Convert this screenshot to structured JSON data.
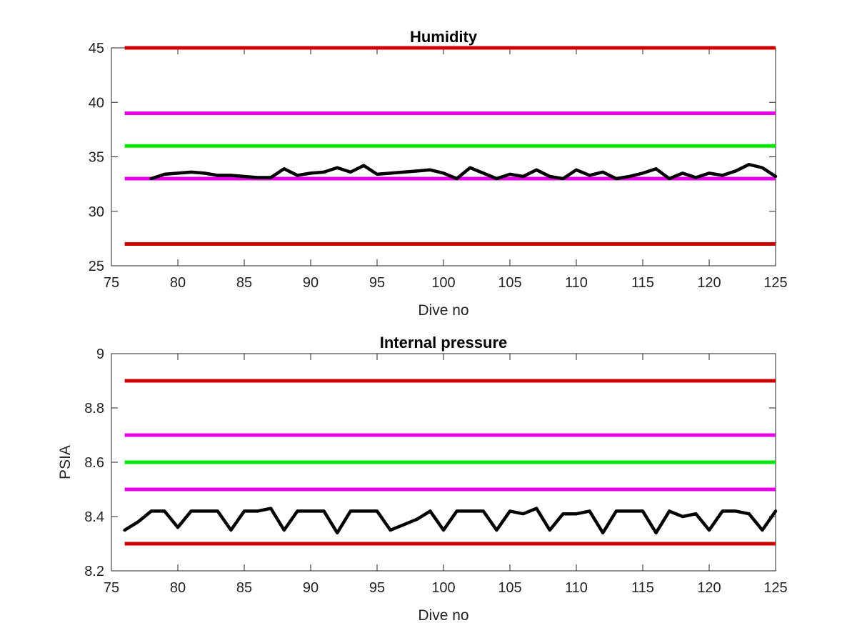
{
  "chart_data": [
    {
      "type": "line",
      "title": "Humidity",
      "xlabel": "Dive no",
      "ylabel": "",
      "xlim": [
        75,
        125
      ],
      "ylim": [
        25,
        45
      ],
      "xticks": [
        75,
        80,
        85,
        90,
        95,
        100,
        105,
        110,
        115,
        120,
        125
      ],
      "yticks": [
        25,
        30,
        35,
        40,
        45
      ],
      "grid": false,
      "limit_lines": [
        {
          "y": 45,
          "x": [
            76,
            125
          ],
          "color": "#cc0000"
        },
        {
          "y": 39,
          "x": [
            76,
            125
          ],
          "color": "#e600e6"
        },
        {
          "y": 36,
          "x": [
            76,
            125
          ],
          "color": "#00e600"
        },
        {
          "y": 33,
          "x": [
            76,
            125
          ],
          "color": "#e600e6"
        },
        {
          "y": 27,
          "x": [
            76,
            125
          ],
          "color": "#cc0000"
        }
      ],
      "series": [
        {
          "color": "#000000",
          "x": [
            78,
            79,
            80,
            81,
            82,
            83,
            84,
            85,
            86,
            87,
            88,
            89,
            90,
            91,
            92,
            93,
            94,
            95,
            96,
            97,
            98,
            99,
            100,
            101,
            102,
            103,
            104,
            105,
            106,
            107,
            108,
            109,
            110,
            111,
            112,
            113,
            114,
            115,
            116,
            117,
            118,
            119,
            120,
            121,
            122,
            123,
            124,
            125
          ],
          "y": [
            33.0,
            33.4,
            33.5,
            33.6,
            33.5,
            33.3,
            33.3,
            33.2,
            33.1,
            33.1,
            33.9,
            33.3,
            33.5,
            33.6,
            34.0,
            33.6,
            34.2,
            33.4,
            33.5,
            33.6,
            33.7,
            33.8,
            33.5,
            33.0,
            34.0,
            33.5,
            33.0,
            33.4,
            33.2,
            33.8,
            33.2,
            33.0,
            33.8,
            33.3,
            33.6,
            33.0,
            33.2,
            33.5,
            33.9,
            33.0,
            33.5,
            33.1,
            33.5,
            33.3,
            33.7,
            34.3,
            34.0,
            33.2
          ]
        }
      ]
    },
    {
      "type": "line",
      "title": "Internal pressure",
      "xlabel": "Dive no",
      "ylabel": "PSIA",
      "xlim": [
        75,
        125
      ],
      "ylim": [
        8.2,
        9.0
      ],
      "xticks": [
        75,
        80,
        85,
        90,
        95,
        100,
        105,
        110,
        115,
        120,
        125
      ],
      "yticks": [
        8.2,
        8.4,
        8.6,
        8.8,
        9
      ],
      "ytick_labels": [
        "8.2",
        "8.4",
        "8.6",
        "8.8",
        "9"
      ],
      "grid": false,
      "limit_lines": [
        {
          "y": 8.9,
          "x": [
            76,
            125
          ],
          "color": "#cc0000"
        },
        {
          "y": 8.7,
          "x": [
            76,
            125
          ],
          "color": "#e600e6"
        },
        {
          "y": 8.6,
          "x": [
            76,
            125
          ],
          "color": "#00e600"
        },
        {
          "y": 8.5,
          "x": [
            76,
            125
          ],
          "color": "#e600e6"
        },
        {
          "y": 8.3,
          "x": [
            76,
            125
          ],
          "color": "#cc0000"
        }
      ],
      "series": [
        {
          "color": "#000000",
          "x": [
            76,
            77,
            78,
            79,
            80,
            81,
            82,
            83,
            84,
            85,
            86,
            87,
            88,
            89,
            90,
            91,
            92,
            93,
            94,
            95,
            96,
            97,
            98,
            99,
            100,
            101,
            102,
            103,
            104,
            105,
            106,
            107,
            108,
            109,
            110,
            111,
            112,
            113,
            114,
            115,
            116,
            117,
            118,
            119,
            120,
            121,
            122,
            123,
            124,
            125
          ],
          "y": [
            8.35,
            8.38,
            8.42,
            8.42,
            8.36,
            8.42,
            8.42,
            8.42,
            8.35,
            8.42,
            8.42,
            8.43,
            8.35,
            8.42,
            8.42,
            8.42,
            8.34,
            8.42,
            8.42,
            8.42,
            8.35,
            8.37,
            8.39,
            8.42,
            8.35,
            8.42,
            8.42,
            8.42,
            8.35,
            8.42,
            8.41,
            8.43,
            8.35,
            8.41,
            8.41,
            8.42,
            8.34,
            8.42,
            8.42,
            8.42,
            8.34,
            8.42,
            8.4,
            8.41,
            8.35,
            8.42,
            8.42,
            8.41,
            8.35,
            8.42
          ]
        }
      ]
    }
  ]
}
